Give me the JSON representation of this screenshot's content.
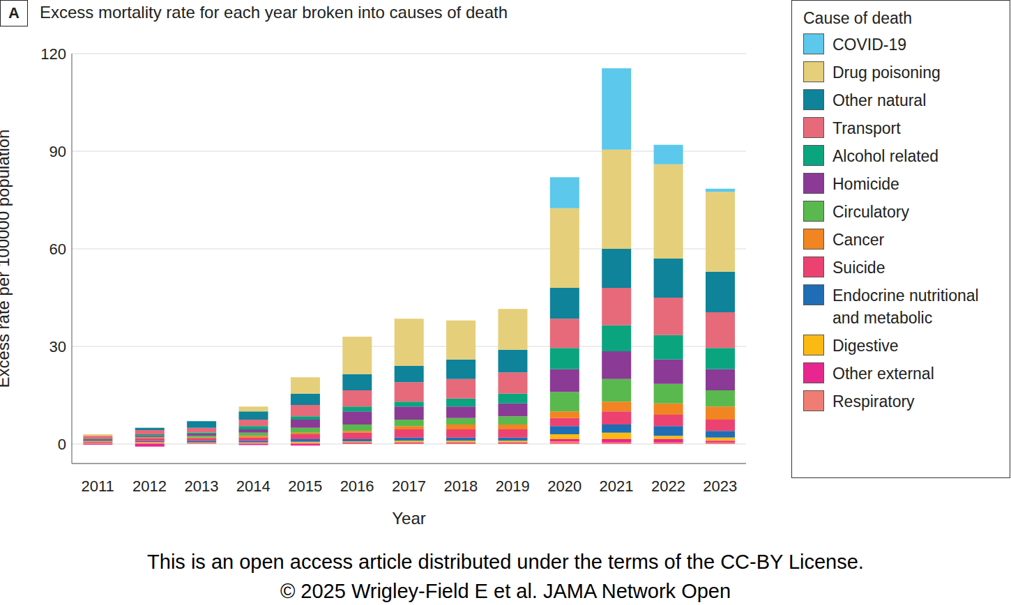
{
  "chart_data": {
    "type": "bar",
    "panel": "A",
    "title": "Excess mortality rate for each year broken into causes of death",
    "x_label": "Year",
    "y_label": "Excess rate per 100000 population",
    "legend_title": "Cause of death",
    "legend": "right",
    "stacked": true,
    "grid": true,
    "caption": [
      "This is an open access article distributed under the terms of the CC-BY License.",
      "© 2025 Wrigley-Field E et al. JAMA Network Open"
    ],
    "categories": [
      "2011",
      "2012",
      "2013",
      "2014",
      "2015",
      "2016",
      "2017",
      "2018",
      "2019",
      "2020",
      "2021",
      "2022",
      "2023"
    ],
    "ylim": [
      -6,
      120
    ],
    "yticks": [
      0,
      30,
      60,
      90,
      120
    ],
    "series": [
      {
        "name": "COVID-19",
        "color": "#5bc8ec",
        "values": [
          0,
          0,
          0,
          0,
          0,
          0,
          0,
          0,
          0,
          9.5,
          25,
          6,
          1
        ]
      },
      {
        "name": "Drug poisoning",
        "color": "#e5cf7a",
        "values": [
          0.5,
          0,
          0,
          1.5,
          5,
          11.5,
          14.5,
          12,
          12.5,
          24.5,
          30.5,
          29,
          24.5
        ]
      },
      {
        "name": "Other natural",
        "color": "#0e8399",
        "values": [
          0,
          0.7,
          2,
          2.5,
          3.5,
          5,
          5,
          6,
          7,
          9.5,
          12,
          12,
          12.5
        ]
      },
      {
        "name": "Transport",
        "color": "#e66a7a",
        "values": [
          1,
          1.3,
          1.5,
          2,
          3.5,
          5,
          6,
          6,
          6.5,
          9,
          11.5,
          11.5,
          11
        ]
      },
      {
        "name": "Alcohol related",
        "color": "#0aa57e",
        "values": [
          0.2,
          0.3,
          0.5,
          1,
          1,
          1.5,
          1.5,
          2.5,
          3,
          6.5,
          8,
          7.5,
          6.5
        ]
      },
      {
        "name": "Homicide",
        "color": "#8b3a96",
        "values": [
          0.3,
          0.5,
          0.5,
          1,
          2.5,
          4,
          4,
          3.5,
          4,
          7,
          8.5,
          7.5,
          6.5
        ]
      },
      {
        "name": "Circulatory",
        "color": "#5ab94e",
        "values": [
          0.2,
          0.3,
          0.5,
          1,
          1.5,
          2,
          2,
          2,
          2.5,
          6,
          7,
          6,
          5
        ]
      },
      {
        "name": "Cancer",
        "color": "#f08522",
        "values": [
          0.1,
          0.2,
          0.3,
          0.5,
          0.5,
          0.5,
          1,
          1.5,
          1.5,
          2,
          3,
          3.5,
          4
        ]
      },
      {
        "name": "Suicide",
        "color": "#ec4272",
        "values": [
          0.3,
          0.8,
          0.7,
          1,
          1.5,
          2,
          2.5,
          2.5,
          2.5,
          2.5,
          4,
          3.5,
          3.5
        ]
      },
      {
        "name": "Endocrine nutritional and metabolic",
        "color": "#1f6eb5",
        "values": [
          0.1,
          0.3,
          0.5,
          0.5,
          0.8,
          0.7,
          1,
          1,
          1,
          2.5,
          2.5,
          3,
          2
        ]
      },
      {
        "name": "Digestive",
        "color": "#fbb913",
        "values": [
          0.1,
          0.2,
          0.2,
          0.2,
          0.3,
          0.3,
          0.5,
          0.5,
          0.5,
          1.5,
          2,
          1,
          1
        ]
      },
      {
        "name": "Other external",
        "color": "#e8268f",
        "values": [
          -0.2,
          -0.8,
          0.1,
          -0.3,
          -0.5,
          0.3,
          0.3,
          0.3,
          0.3,
          0.7,
          1,
          1,
          0.5
        ]
      },
      {
        "name": "Respiratory",
        "color": "#f07d74",
        "values": [
          0.2,
          0.4,
          0.2,
          0.3,
          0.4,
          0.2,
          0.2,
          0.2,
          0.2,
          0.8,
          0.5,
          0.5,
          0.5
        ]
      }
    ]
  }
}
